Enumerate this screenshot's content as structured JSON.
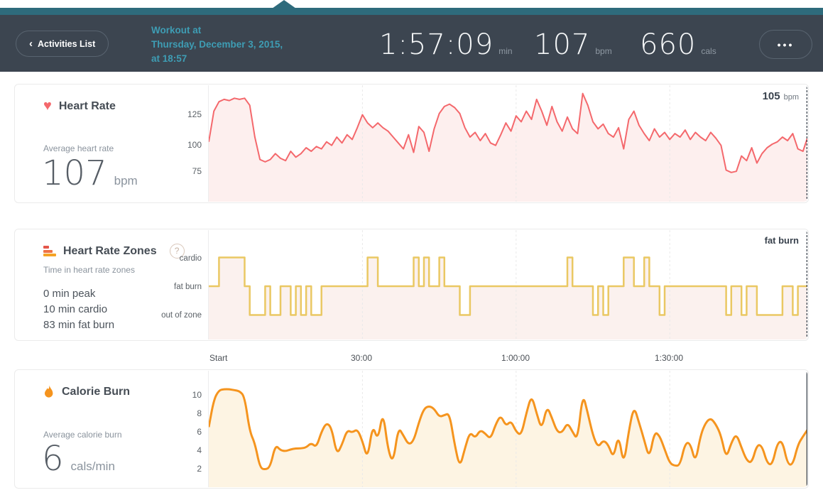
{
  "header": {
    "back_button_label": "Activities List",
    "back_chevron": "‹",
    "title_lines": [
      "Workout at",
      "Thursday, December 3, 2015,",
      "at 18:57"
    ],
    "stats": [
      {
        "value": "1:57:09",
        "unit": "min"
      },
      {
        "value": "107",
        "unit": "bpm"
      },
      {
        "value": "660",
        "unit": "cals"
      }
    ],
    "menu_label": "•••",
    "colors": {
      "bar_bg": "#3c4550",
      "accent_teal": "#2e6b7c",
      "title_teal": "#3e9db4"
    }
  },
  "panels": {
    "heart_rate": {
      "title": "Heart Rate",
      "avg_label": "Average heart rate",
      "avg_value": "107",
      "avg_unit": "bpm",
      "y_ticks": [
        "125",
        "100",
        "75"
      ],
      "cursor_value": "105",
      "cursor_unit": "bpm"
    },
    "heart_rate_zones": {
      "title": "Heart Rate Zones",
      "help_label": "?",
      "summary_label": "Time in heart rate zones",
      "summary_lines": [
        "0 min peak",
        "10 min cardio",
        "83 min fat burn"
      ],
      "y_labels": [
        "cardio",
        "fat burn",
        "out of zone"
      ],
      "cursor_value": "fat burn"
    },
    "calorie_burn": {
      "title": "Calorie Burn",
      "avg_label": "Average calorie burn",
      "avg_value": "6",
      "avg_unit": "cals/min",
      "y_ticks": [
        "10",
        "8",
        "6",
        "4",
        "2"
      ]
    }
  },
  "x_axis": {
    "ticks": [
      {
        "label": "Start",
        "minute": 0
      },
      {
        "label": "30:00",
        "minute": 30
      },
      {
        "label": "1:00:00",
        "minute": 60
      },
      {
        "label": "1:30:00",
        "minute": 90
      }
    ]
  },
  "chart_data": {
    "minutes_total": 117,
    "x_unit": "minutes (one sample per minute, 0–117)",
    "charts": [
      {
        "id": "hr",
        "type": "line",
        "smooth": false,
        "title": "Heart Rate",
        "ylabel": "bpm",
        "y_tick_values": [
          75,
          100,
          125
        ],
        "ylim": [
          48,
          148
        ],
        "color": "#f4686c",
        "fill": "#fdefee",
        "stroke_width": 2,
        "cursor": "dashed",
        "values": [
          100,
          126,
          134,
          136,
          135,
          137,
          136,
          137,
          131,
          104,
          85,
          83,
          85,
          90,
          86,
          84,
          92,
          87,
          90,
          95,
          92,
          96,
          94,
          100,
          97,
          104,
          99,
          106,
          102,
          112,
          123,
          116,
          112,
          116,
          112,
          109,
          104,
          99,
          94,
          106,
          91,
          113,
          108,
          92,
          111,
          124,
          130,
          132,
          129,
          124,
          112,
          104,
          108,
          101,
          107,
          99,
          97,
          106,
          116,
          109,
          122,
          117,
          126,
          119,
          136,
          126,
          114,
          130,
          117,
          109,
          121,
          111,
          107,
          141,
          131,
          117,
          111,
          115,
          107,
          104,
          112,
          94,
          119,
          126,
          114,
          107,
          101,
          111,
          104,
          108,
          102,
          107,
          104,
          110,
          102,
          108,
          104,
          101,
          108,
          103,
          97,
          76,
          74,
          75,
          88,
          84,
          95,
          82,
          90,
          95,
          98,
          100,
          104,
          101,
          107,
          94,
          92,
          105
        ]
      },
      {
        "id": "zones",
        "type": "step",
        "smooth": false,
        "title": "Heart Rate Zones",
        "ylabel": "zone (0 = out of zone, 1 = fat burn, 2 = cardio)",
        "y_tick_values": [
          0,
          1,
          2
        ],
        "ylim": [
          -0.9,
          2.95
        ],
        "color": "#eac863",
        "fill": "#fbf1ee",
        "stroke_width": 2.5,
        "cursor": "dashed",
        "values": [
          1,
          1,
          2,
          2,
          2,
          2,
          2,
          1,
          0,
          0,
          0,
          1,
          0,
          0,
          1,
          1,
          0,
          1,
          0,
          1,
          0,
          0,
          1,
          1,
          1,
          1,
          1,
          1,
          1,
          1,
          1,
          2,
          2,
          1,
          1,
          1,
          1,
          1,
          1,
          1,
          2,
          1,
          2,
          1,
          1,
          2,
          1,
          1,
          1,
          0,
          0,
          1,
          1,
          1,
          1,
          1,
          1,
          1,
          1,
          1,
          1,
          1,
          1,
          1,
          1,
          1,
          1,
          1,
          1,
          1,
          2,
          1,
          1,
          1,
          1,
          0,
          1,
          0,
          1,
          1,
          1,
          2,
          2,
          1,
          1,
          2,
          1,
          1,
          0,
          1,
          1,
          1,
          1,
          1,
          1,
          1,
          1,
          1,
          1,
          1,
          1,
          0,
          1,
          1,
          0,
          1,
          1,
          0,
          0,
          0,
          0,
          0,
          1,
          1,
          0,
          1,
          1,
          1
        ]
      },
      {
        "id": "cal",
        "type": "line",
        "smooth": true,
        "title": "Calorie Burn",
        "ylabel": "cals/min",
        "y_tick_values": [
          2,
          4,
          6,
          8,
          10
        ],
        "ylim": [
          -0.15,
          12.6
        ],
        "color": "#f5941e",
        "fill": "#fdf4e3",
        "stroke_width": 3,
        "cursor": "solid",
        "values": [
          6.5,
          9.5,
          10.5,
          10.6,
          10.6,
          10.5,
          10.4,
          9.8,
          6.0,
          4.8,
          2.1,
          1.9,
          2.2,
          4.6,
          4.0,
          3.9,
          4.1,
          4.2,
          4.2,
          4.3,
          4.8,
          4.3,
          6.0,
          7.0,
          6.4,
          3.5,
          4.6,
          6.2,
          5.9,
          6.3,
          5.0,
          3.0,
          6.8,
          5.0,
          8.3,
          4.0,
          2.6,
          6.5,
          5.6,
          4.6,
          5.0,
          7.0,
          8.5,
          8.8,
          8.5,
          7.6,
          7.8,
          8.0,
          4.6,
          2.1,
          4.2,
          6.0,
          5.3,
          6.2,
          5.8,
          5.2,
          6.8,
          7.8,
          6.6,
          7.2,
          6.0,
          5.6,
          8.0,
          10.0,
          8.0,
          6.2,
          8.8,
          7.5,
          6.0,
          5.9,
          7.0,
          6.0,
          5.1,
          10.2,
          8.0,
          5.6,
          4.3,
          5.1,
          4.6,
          3.1,
          5.8,
          2.3,
          6.1,
          8.8,
          7.0,
          5.1,
          3.1,
          6.0,
          5.6,
          4.1,
          2.6,
          2.3,
          2.4,
          4.8,
          4.8,
          2.6,
          5.6,
          7.0,
          7.5,
          6.8,
          5.6,
          3.1,
          4.8,
          5.8,
          4.3,
          2.9,
          2.6,
          4.6,
          4.5,
          2.6,
          2.4,
          4.8,
          5.0,
          2.5,
          2.4,
          4.6,
          5.5,
          6.3
        ]
      }
    ]
  }
}
